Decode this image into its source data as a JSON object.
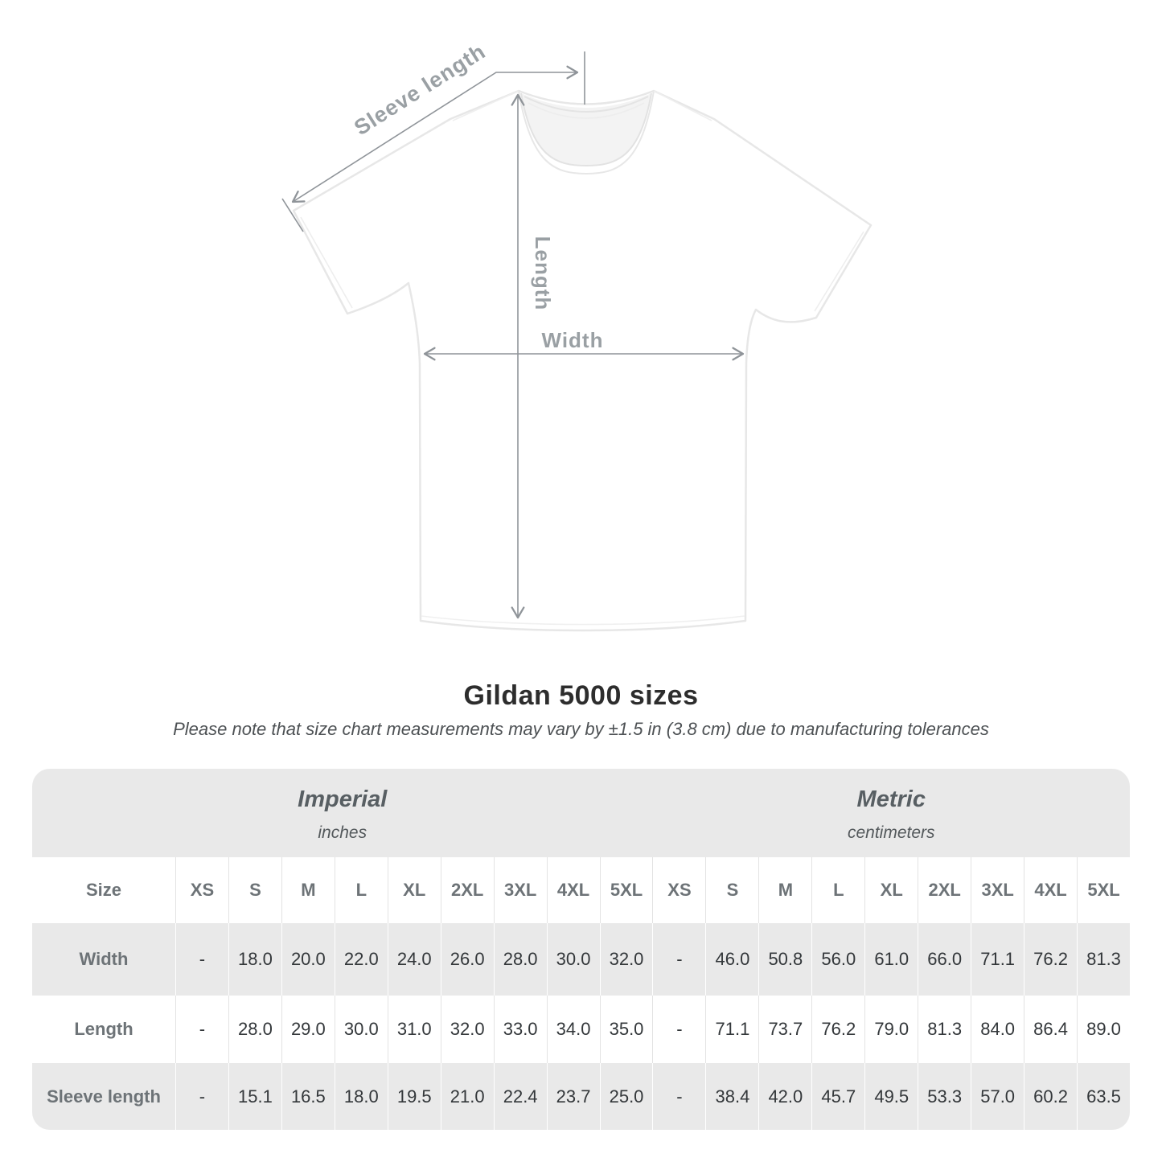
{
  "diagram": {
    "sleeve_length_label": "Sleeve length",
    "length_label": "Length",
    "width_label": "Width"
  },
  "title": "Gildan 5000 sizes",
  "note": "Please note that size chart measurements may vary by ±1.5 in (3.8 cm) due to manufacturing tolerances",
  "chart_data": {
    "type": "table",
    "title": "Gildan 5000 sizes",
    "unit_sections": [
      {
        "label": "Imperial",
        "unit": "inches"
      },
      {
        "label": "Metric",
        "unit": "centimeters"
      }
    ],
    "size_column_header": "Size",
    "sizes": [
      "XS",
      "S",
      "M",
      "L",
      "XL",
      "2XL",
      "3XL",
      "4XL",
      "5XL"
    ],
    "rows": [
      {
        "label": "Width",
        "imperial": [
          "-",
          "18.0",
          "20.0",
          "22.0",
          "24.0",
          "26.0",
          "28.0",
          "30.0",
          "32.0"
        ],
        "metric": [
          "-",
          "46.0",
          "50.8",
          "56.0",
          "61.0",
          "66.0",
          "71.1",
          "76.2",
          "81.3"
        ]
      },
      {
        "label": "Length",
        "imperial": [
          "-",
          "28.0",
          "29.0",
          "30.0",
          "31.0",
          "32.0",
          "33.0",
          "34.0",
          "35.0"
        ],
        "metric": [
          "-",
          "71.1",
          "73.7",
          "76.2",
          "79.0",
          "81.3",
          "84.0",
          "86.4",
          "89.0"
        ]
      },
      {
        "label": "Sleeve length",
        "imperial": [
          "-",
          "15.1",
          "16.5",
          "18.0",
          "19.5",
          "21.0",
          "22.4",
          "23.7",
          "25.0"
        ],
        "metric": [
          "-",
          "38.4",
          "42.0",
          "45.7",
          "49.5",
          "53.3",
          "57.0",
          "60.2",
          "63.5"
        ]
      }
    ]
  },
  "colors": {
    "annotation_line": "#8f9499",
    "annotation_text": "#9aa0a4",
    "table_band": "#e9e9e9",
    "header_text": "#6d7377",
    "value_text": "#33373a",
    "title_text": "#2d2d2d",
    "note_text": "#4d5154"
  }
}
